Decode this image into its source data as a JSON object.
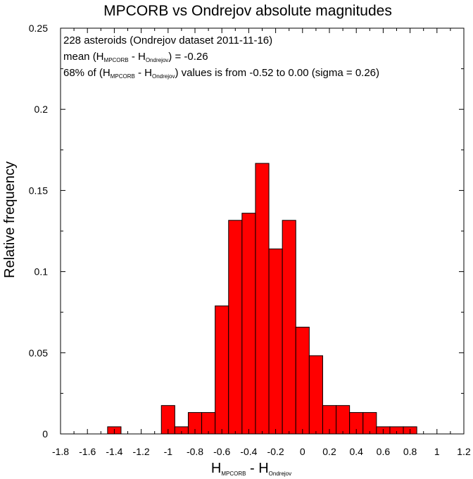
{
  "chart_data": {
    "type": "bar",
    "title": "MPCORB vs Ondrejov absolute magnitudes",
    "xlabel": {
      "main": "H",
      "sub1": "MPCORB",
      "mid": " - H",
      "sub2": "Ondrejov"
    },
    "ylabel": "Relative frequency",
    "xlim": [
      -1.8,
      1.2
    ],
    "ylim": [
      0,
      0.25
    ],
    "bin_width": 0.1,
    "x_ticks": [
      "-1.8",
      "-1.6",
      "-1.4",
      "-1.2",
      "-1",
      "-0.8",
      "-0.6",
      "-0.4",
      "-0.2",
      "0",
      "0.2",
      "0.4",
      "0.6",
      "0.8",
      "1",
      "1.2"
    ],
    "y_ticks": [
      "0",
      "0.05",
      "0.1",
      "0.15",
      "0.2",
      "0.25"
    ],
    "bar_color": "#ff0000",
    "bins": [
      {
        "x0": -1.45,
        "value": 0.0044
      },
      {
        "x0": -1.05,
        "value": 0.0175
      },
      {
        "x0": -0.95,
        "value": 0.0044
      },
      {
        "x0": -0.85,
        "value": 0.0132
      },
      {
        "x0": -0.75,
        "value": 0.0132
      },
      {
        "x0": -0.65,
        "value": 0.0789
      },
      {
        "x0": -0.55,
        "value": 0.1316
      },
      {
        "x0": -0.45,
        "value": 0.136
      },
      {
        "x0": -0.35,
        "value": 0.1667
      },
      {
        "x0": -0.25,
        "value": 0.114
      },
      {
        "x0": -0.15,
        "value": 0.1316
      },
      {
        "x0": -0.05,
        "value": 0.0658
      },
      {
        "x0": 0.05,
        "value": 0.0482
      },
      {
        "x0": 0.15,
        "value": 0.0175
      },
      {
        "x0": 0.25,
        "value": 0.0175
      },
      {
        "x0": 0.35,
        "value": 0.0132
      },
      {
        "x0": 0.45,
        "value": 0.0132
      },
      {
        "x0": 0.55,
        "value": 0.0044
      },
      {
        "x0": 0.65,
        "value": 0.0044
      },
      {
        "x0": 0.75,
        "value": 0.0044
      }
    ],
    "annotations": {
      "line1": "228 asteroids (Ondrejov dataset 2011-11-16)",
      "line2": {
        "pre": "mean (H",
        "sub1": "MPCORB",
        "mid": " - H",
        "sub2": "Ondrejov",
        "post": ") = -0.26"
      },
      "line3": {
        "pre": "68% of (H",
        "sub1": "MPCORB",
        "mid": " - H",
        "sub2": "Ondrejov",
        "post": ") values is from -0.52 to 0.00 (sigma = 0.26)"
      }
    }
  }
}
